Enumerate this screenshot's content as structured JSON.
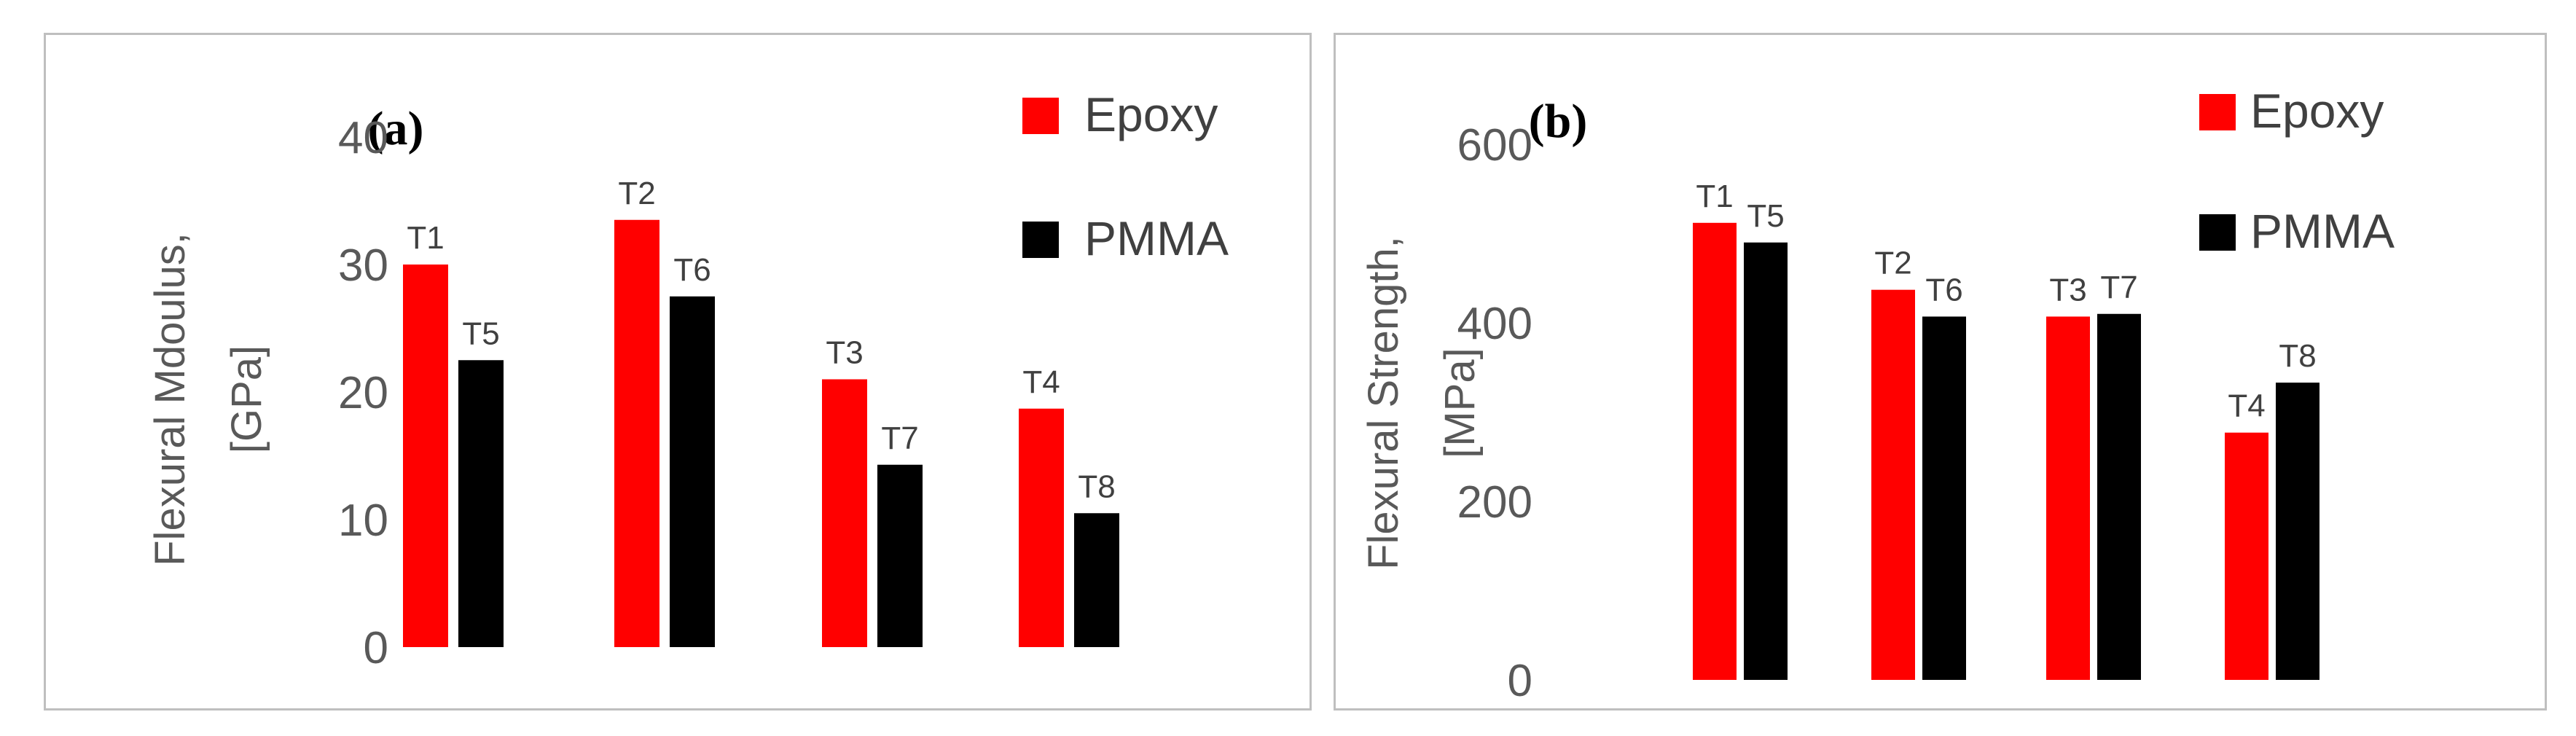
{
  "chart_data": [
    {
      "type": "bar",
      "panel_label": "(a)",
      "ylabel_line1": "Flexural Mdoulus,",
      "ylabel_line2": "[GPa]",
      "ylim": [
        0,
        40
      ],
      "yticks": [
        "0",
        "10",
        "20",
        "30",
        "40"
      ],
      "legend": [
        "Epoxy",
        "PMMA"
      ],
      "legend_position": "top-right",
      "grid": false,
      "colors": {
        "Epoxy": "#ff0000",
        "PMMA": "#000000"
      },
      "groups": [
        {
          "bars": [
            {
              "label": "T1",
              "series": "Epoxy",
              "value": 30
            },
            {
              "label": "T5",
              "series": "PMMA",
              "value": 22.5
            }
          ]
        },
        {
          "bars": [
            {
              "label": "T2",
              "series": "Epoxy",
              "value": 33.5
            },
            {
              "label": "T6",
              "series": "PMMA",
              "value": 27.5
            }
          ]
        },
        {
          "bars": [
            {
              "label": "T3",
              "series": "Epoxy",
              "value": 21
            },
            {
              "label": "T7",
              "series": "PMMA",
              "value": 14.3
            }
          ]
        },
        {
          "bars": [
            {
              "label": "T4",
              "series": "Epoxy",
              "value": 18.7
            },
            {
              "label": "T8",
              "series": "PMMA",
              "value": 10.5
            }
          ]
        }
      ]
    },
    {
      "type": "bar",
      "panel_label": "(b)",
      "ylabel_line1": "Flexural Strength,",
      "ylabel_line2": "[MPa]",
      "ylim": [
        0,
        600
      ],
      "yticks": [
        "0",
        "200",
        "400",
        "600"
      ],
      "legend": [
        "Epoxy",
        "PMMA"
      ],
      "legend_position": "top-right",
      "grid": false,
      "colors": {
        "Epoxy": "#ff0000",
        "PMMA": "#000000"
      },
      "groups": [
        {
          "bars": [
            {
              "label": "T1",
              "series": "Epoxy",
              "value": 512
            },
            {
              "label": "T5",
              "series": "PMMA",
              "value": 490
            }
          ]
        },
        {
          "bars": [
            {
              "label": "T2",
              "series": "Epoxy",
              "value": 437
            },
            {
              "label": "T6",
              "series": "PMMA",
              "value": 407
            }
          ]
        },
        {
          "bars": [
            {
              "label": "T3",
              "series": "Epoxy",
              "value": 407
            },
            {
              "label": "T7",
              "series": "PMMA",
              "value": 410
            }
          ]
        },
        {
          "bars": [
            {
              "label": "T4",
              "series": "Epoxy",
              "value": 277
            },
            {
              "label": "T8",
              "series": "PMMA",
              "value": 333
            }
          ]
        }
      ]
    }
  ]
}
